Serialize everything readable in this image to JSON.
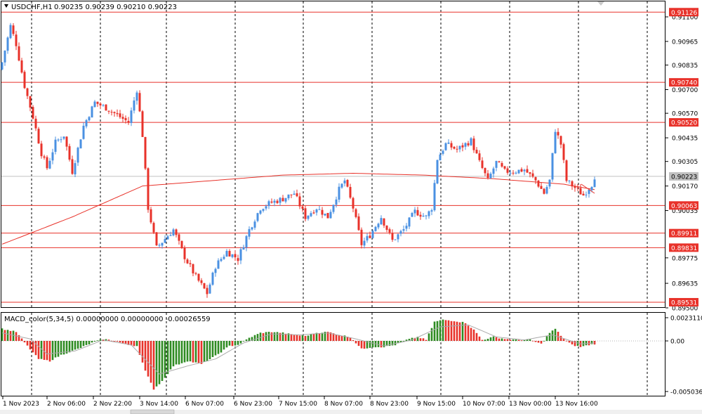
{
  "header": {
    "symbol_tf": "USDCHF,H1",
    "ohlc": "0.90235 0.90239 0.90210 0.90223"
  },
  "macd_header": "MACD_color(5,34,5) 0.00000000 0.00000000 -0.00026559",
  "colors": {
    "bull": "#4a90e2",
    "bear": "#e8322a",
    "hline": "#e8322a",
    "ma": "#e8322a",
    "bid_line": "#c0c0c0",
    "hist_pos": "#2e8b22",
    "hist_neg": "#e8322a",
    "signal": "#a9a9a9"
  },
  "chart_data": [
    {
      "type": "candlestick",
      "symbol": "USDCHF",
      "timeframe": "H1",
      "y_ticks": [
        "0.91100",
        "0.90965",
        "0.90835",
        "0.90700",
        "0.90570",
        "0.90435",
        "0.90305",
        "0.90170",
        "0.90035",
        "0.89775",
        "0.89635",
        "0.89500"
      ],
      "ylim": [
        0.895,
        0.9122
      ],
      "x_ticks": [
        "1 Nov 2023",
        "2 Nov 06:00",
        "2 Nov 22:00",
        "3 Nov 14:00",
        "6 Nov 07:00",
        "6 Nov 23:00",
        "7 Nov 15:00",
        "8 Nov 07:00",
        "8 Nov 23:00",
        "9 Nov 15:00",
        "10 Nov 07:00",
        "13 Nov 00:00",
        "13 Nov 16:00"
      ],
      "horizontal_levels": [
        {
          "value": 0.91126,
          "label": "0.91126"
        },
        {
          "value": 0.9074,
          "label": "0.90740"
        },
        {
          "value": 0.9052,
          "label": "0.90520"
        },
        {
          "value": 0.90063,
          "label": "0.90063"
        },
        {
          "value": 0.89911,
          "label": "0.89911"
        },
        {
          "value": 0.89831,
          "label": "0.89831"
        },
        {
          "value": 0.89531,
          "label": "0.89531"
        }
      ],
      "current_price": {
        "value": 0.90223,
        "label": "0.90223"
      },
      "anchor_closes": [
        [
          0,
          0.9085
        ],
        [
          3,
          0.9105
        ],
        [
          5,
          0.9095
        ],
        [
          8,
          0.9072
        ],
        [
          11,
          0.9055
        ],
        [
          14,
          0.9035
        ],
        [
          16,
          0.9027
        ],
        [
          19,
          0.9041
        ],
        [
          22,
          0.9045
        ],
        [
          25,
          0.9025
        ],
        [
          29,
          0.905
        ],
        [
          33,
          0.9063
        ],
        [
          37,
          0.906
        ],
        [
          41,
          0.9056
        ],
        [
          45,
          0.9052
        ],
        [
          48,
          0.907
        ],
        [
          50,
          0.9045
        ],
        [
          52,
          0.9005
        ],
        [
          55,
          0.8983
        ],
        [
          58,
          0.8988
        ],
        [
          61,
          0.8993
        ],
        [
          65,
          0.8978
        ],
        [
          69,
          0.8967
        ],
        [
          73,
          0.8958
        ],
        [
          76,
          0.8973
        ],
        [
          80,
          0.8981
        ],
        [
          84,
          0.8977
        ],
        [
          88,
          0.8993
        ],
        [
          92,
          0.9005
        ],
        [
          96,
          0.9008
        ],
        [
          100,
          0.901
        ],
        [
          104,
          0.9013
        ],
        [
          108,
          0.9
        ],
        [
          112,
          0.9005
        ],
        [
          116,
          0.9
        ],
        [
          120,
          0.9015
        ],
        [
          122,
          0.902
        ],
        [
          125,
          0.9005
        ],
        [
          128,
          0.8985
        ],
        [
          131,
          0.899
        ],
        [
          135,
          0.9
        ],
        [
          139,
          0.8987
        ],
        [
          143,
          0.8993
        ],
        [
          147,
          0.9003
        ],
        [
          151,
          0.9
        ],
        [
          153,
          0.9005
        ],
        [
          155,
          0.9032
        ],
        [
          158,
          0.904
        ],
        [
          162,
          0.9037
        ],
        [
          167,
          0.9042
        ],
        [
          170,
          0.903
        ],
        [
          173,
          0.902
        ],
        [
          176,
          0.903
        ],
        [
          179,
          0.9025
        ],
        [
          182,
          0.9025
        ],
        [
          186,
          0.9026
        ],
        [
          190,
          0.902
        ],
        [
          193,
          0.9013
        ],
        [
          195,
          0.902
        ],
        [
          197,
          0.9048
        ],
        [
          199,
          0.904
        ],
        [
          201,
          0.902
        ],
        [
          204,
          0.9016
        ],
        [
          207,
          0.9012
        ],
        [
          210,
          0.9018
        ],
        [
          211,
          0.90223
        ]
      ],
      "moving_average": [
        [
          0,
          0.8985
        ],
        [
          25,
          0.9
        ],
        [
          50,
          0.9017
        ],
        [
          75,
          0.902
        ],
        [
          100,
          0.9023
        ],
        [
          125,
          0.9024
        ],
        [
          150,
          0.9023
        ],
        [
          175,
          0.9021
        ],
        [
          200,
          0.9018
        ],
        [
          211,
          0.9015
        ]
      ]
    },
    {
      "type": "histogram",
      "indicator": "MACD_color(5,34,5)",
      "y_ticks": [
        "0.0023110",
        "0.00",
        "-0.0050368"
      ],
      "ylim": [
        -0.0052,
        0.0025
      ],
      "hist_anchors": [
        [
          0,
          0.0012
        ],
        [
          5,
          0.0009
        ],
        [
          9,
          -0.0005
        ],
        [
          13,
          -0.0018
        ],
        [
          17,
          -0.002
        ],
        [
          21,
          -0.0014
        ],
        [
          27,
          -0.0008
        ],
        [
          32,
          -0.0002
        ],
        [
          36,
          0.0002
        ],
        [
          40,
          0.0
        ],
        [
          45,
          -0.0004
        ],
        [
          48,
          -0.0005
        ],
        [
          51,
          -0.003
        ],
        [
          54,
          -0.0048
        ],
        [
          57,
          -0.004
        ],
        [
          61,
          -0.0025
        ],
        [
          66,
          -0.002
        ],
        [
          71,
          -0.0023
        ],
        [
          76,
          -0.0015
        ],
        [
          81,
          -0.0005
        ],
        [
          84,
          -0.0004
        ],
        [
          88,
          0.0003
        ],
        [
          92,
          0.0008
        ],
        [
          96,
          0.0009
        ],
        [
          100,
          0.0008
        ],
        [
          104,
          0.0006
        ],
        [
          108,
          0.0005
        ],
        [
          112,
          0.0008
        ],
        [
          116,
          0.0009
        ],
        [
          120,
          0.0006
        ],
        [
          124,
          0.0004
        ],
        [
          128,
          -0.0008
        ],
        [
          132,
          -0.0006
        ],
        [
          136,
          -0.0006
        ],
        [
          140,
          -0.0004
        ],
        [
          144,
          0.0001
        ],
        [
          148,
          0.0004
        ],
        [
          151,
          0.0001
        ],
        [
          154,
          0.0019
        ],
        [
          157,
          0.0021
        ],
        [
          161,
          0.002
        ],
        [
          165,
          0.0018
        ],
        [
          168,
          0.0011
        ],
        [
          171,
          0.0001
        ],
        [
          175,
          0.0004
        ],
        [
          179,
          0.0002
        ],
        [
          183,
          0.0001
        ],
        [
          188,
          0.0001
        ],
        [
          192,
          -0.0003
        ],
        [
          195,
          0.0008
        ],
        [
          197,
          0.0012
        ],
        [
          200,
          0.0002
        ],
        [
          203,
          -0.0004
        ],
        [
          206,
          -0.0006
        ],
        [
          209,
          -0.0004
        ],
        [
          211,
          -0.0003
        ]
      ],
      "signal_anchors": [
        [
          0,
          0.0008
        ],
        [
          10,
          0.0002
        ],
        [
          16,
          -0.0013
        ],
        [
          26,
          -0.001
        ],
        [
          36,
          0.0001
        ],
        [
          46,
          -0.0004
        ],
        [
          56,
          -0.0033
        ],
        [
          66,
          -0.0025
        ],
        [
          76,
          -0.0018
        ],
        [
          86,
          -0.0002
        ],
        [
          96,
          0.0007
        ],
        [
          106,
          0.0006
        ],
        [
          116,
          0.0008
        ],
        [
          126,
          0.0002
        ],
        [
          136,
          -0.0005
        ],
        [
          146,
          0.0001
        ],
        [
          156,
          0.0014
        ],
        [
          166,
          0.0016
        ],
        [
          176,
          0.0004
        ],
        [
          186,
          0.0001
        ],
        [
          196,
          0.0006
        ],
        [
          206,
          -0.0003
        ],
        [
          211,
          -0.0002
        ]
      ]
    }
  ]
}
